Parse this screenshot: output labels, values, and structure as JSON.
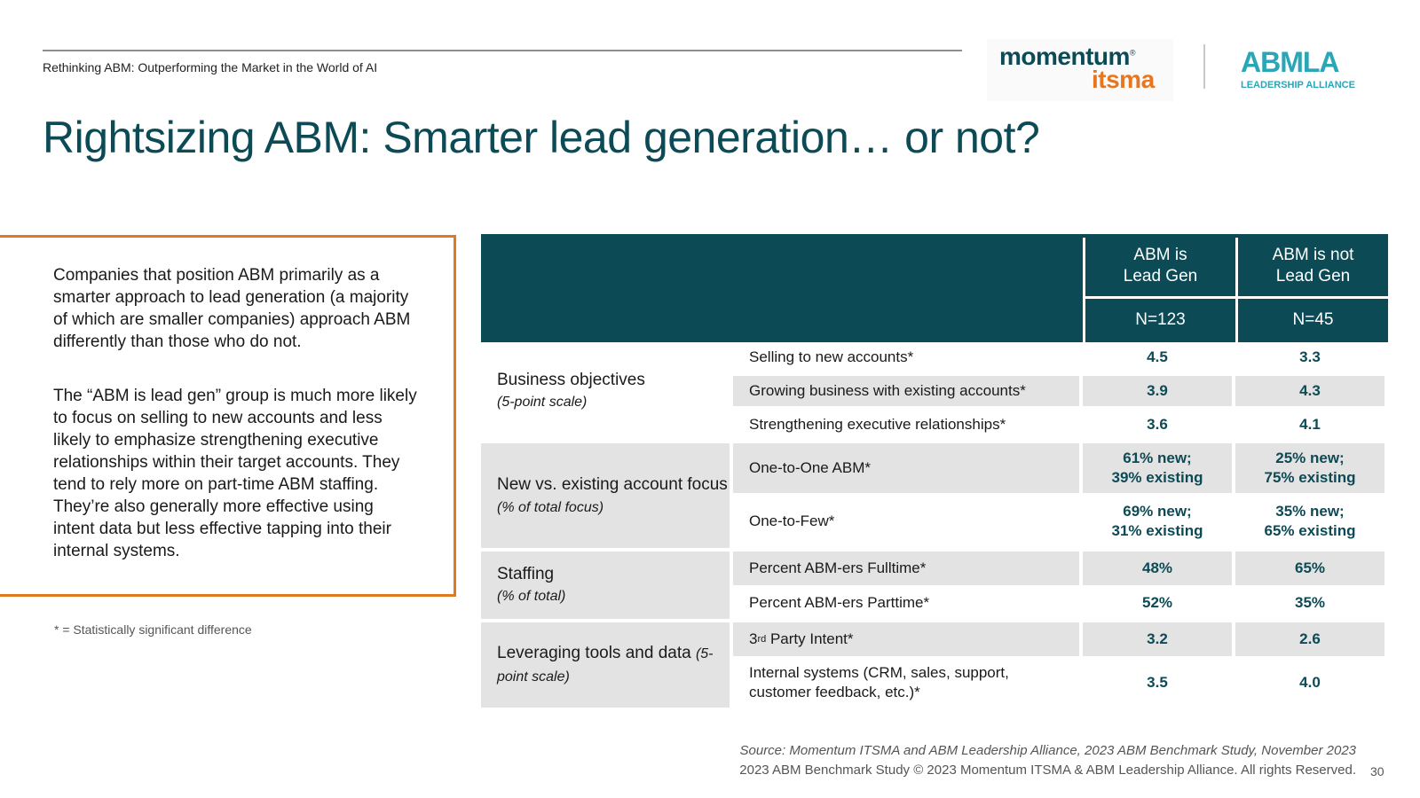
{
  "header": {
    "subtitle": "Rethinking ABM: Outperforming the Market in the World of AI",
    "logo_momentum": "momentum",
    "logo_momentum_mark": "®",
    "logo_itsma": "itsma",
    "logo_abmla": "ABMLA",
    "logo_abmla_sub": "LEADERSHIP ALLIANCE"
  },
  "title": "Rightsizing ABM: Smarter lead generation… or not?",
  "callout": {
    "p1": "Companies that position ABM primarily as a smarter approach to lead generation (a majority of which are smaller companies) approach ABM differently than those who do not.",
    "p2": "The “ABM is lead gen” group is much more likely to focus on selling to new accounts and less likely to emphasize strengthening executive relationships within their target accounts. They tend to rely more on part-time ABM staffing. They’re also generally more effective using intent data but less effective tapping into their internal systems."
  },
  "footnote": "* = Statistically significant difference",
  "table": {
    "col1_header": "ABM is\nLead Gen",
    "col2_header": "ABM is not\nLead Gen",
    "col1_n": "N=123",
    "col2_n": "N=45",
    "groups": [
      {
        "name": "Business objectives",
        "sub": "(5-point scale)"
      },
      {
        "name": "New vs. existing account focus",
        "sub": "(% of total focus)"
      },
      {
        "name": "Staffing",
        "sub": "(% of total)"
      },
      {
        "name": "Leveraging tools and data",
        "sub": "(5-point scale)"
      }
    ],
    "rows": [
      {
        "label": "Selling to new accounts*",
        "v1": "4.5",
        "v2": "3.3"
      },
      {
        "label": "Growing business with existing accounts*",
        "v1": "3.9",
        "v2": "4.3"
      },
      {
        "label": "Strengthening executive relationships*",
        "v1": "3.6",
        "v2": "4.1"
      },
      {
        "label": "One-to-One ABM*",
        "v1": "61% new;\n39% existing",
        "v2": "25% new;\n75% existing"
      },
      {
        "label": "One-to-Few*",
        "v1": "69% new;\n31% existing",
        "v2": "35% new;\n65% existing"
      },
      {
        "label": "Percent ABM-ers Fulltime*",
        "v1": "48%",
        "v2": "65%"
      },
      {
        "label": "Percent ABM-ers Parttime*",
        "v1": "52%",
        "v2": "35%"
      },
      {
        "label_prefix": "3",
        "label_sup": "rd",
        "label_suffix": " Party Intent*",
        "v1": "3.2",
        "v2": "2.6"
      },
      {
        "label": "Internal systems (CRM, sales, support, customer feedback, etc.)*",
        "v1": "3.5",
        "v2": "4.0"
      }
    ]
  },
  "source": "Source: Momentum ITSMA and ABM Leadership Alliance, 2023 ABM Benchmark Study, November 2023",
  "copyright": "2023 ABM Benchmark Study © 2023 Momentum ITSMA & ABM Leadership Alliance. All rights Reserved.",
  "page_number": "30"
}
